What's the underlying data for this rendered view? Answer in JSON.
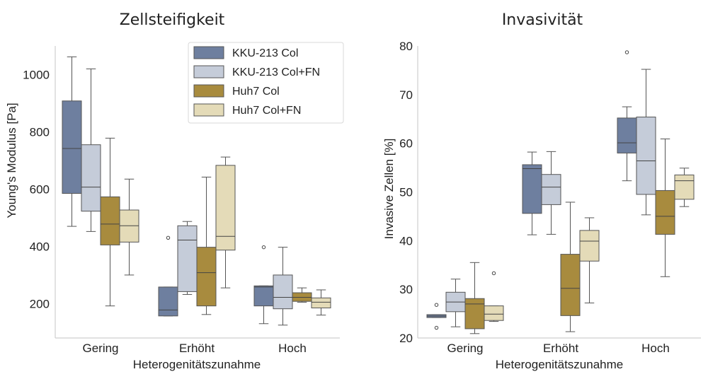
{
  "chart_data": [
    {
      "type": "box",
      "title": "Zellsteifigkeit",
      "xlabel": "Heterogenitätszunahme",
      "ylabel": "Young's Modulus [Pa]",
      "ylim": [
        80,
        1100
      ],
      "yticks": [
        200,
        400,
        600,
        800,
        1000
      ],
      "categories": [
        "Gering",
        "Erhöht",
        "Hoch"
      ],
      "legend_position": "top-right",
      "series": [
        {
          "name": "KKU-213 Col",
          "color": "#6e7f9f",
          "boxes": [
            {
              "whislo": 470,
              "q1": 585,
              "med": 742,
              "q3": 908,
              "whishi": 1062,
              "fliers": []
            },
            {
              "whislo": 157,
              "q1": 157,
              "med": 178,
              "q3": 258,
              "whishi": 258,
              "fliers": [
                430
              ]
            },
            {
              "whislo": 130,
              "q1": 192,
              "med": 258,
              "q3": 262,
              "whishi": 262,
              "fliers": [
                397
              ]
            }
          ]
        },
        {
          "name": "KKU-213 Col+FN",
          "color": "#c5ccd9",
          "boxes": [
            {
              "whislo": 452,
              "q1": 523,
              "med": 607,
              "q3": 755,
              "whishi": 1020,
              "fliers": []
            },
            {
              "whislo": 232,
              "q1": 242,
              "med": 422,
              "q3": 472,
              "whishi": 487,
              "fliers": []
            },
            {
              "whislo": 125,
              "q1": 182,
              "med": 222,
              "q3": 300,
              "whishi": 397,
              "fliers": []
            }
          ]
        },
        {
          "name": "Huh7 Col",
          "color": "#a88b3e",
          "boxes": [
            {
              "whislo": 192,
              "q1": 405,
              "med": 478,
              "q3": 573,
              "whishi": 778,
              "fliers": []
            },
            {
              "whislo": 162,
              "q1": 192,
              "med": 308,
              "q3": 397,
              "whishi": 642,
              "fliers": []
            },
            {
              "whislo": 205,
              "q1": 208,
              "med": 222,
              "q3": 238,
              "whishi": 255,
              "fliers": []
            }
          ]
        },
        {
          "name": "Huh7 Col+FN",
          "color": "#e4dbb8",
          "boxes": [
            {
              "whislo": 300,
              "q1": 415,
              "med": 472,
              "q3": 527,
              "whishi": 635,
              "fliers": []
            },
            {
              "whislo": 255,
              "q1": 387,
              "med": 435,
              "q3": 683,
              "whishi": 712,
              "fliers": []
            },
            {
              "whislo": 160,
              "q1": 185,
              "med": 205,
              "q3": 220,
              "whishi": 248,
              "fliers": []
            }
          ]
        }
      ]
    },
    {
      "type": "box",
      "title": "Invasivität",
      "xlabel": "Heterogenitätszunahme",
      "ylabel": "Invasive Zellen [%]",
      "ylim": [
        20,
        80
      ],
      "yticks": [
        20,
        30,
        40,
        50,
        60,
        70,
        80
      ],
      "categories": [
        "Gering",
        "Erhöht",
        "Hoch"
      ],
      "series": [
        {
          "name": "KKU-213 Col",
          "color": "#6e7f9f",
          "boxes": [
            {
              "whislo": 24.2,
              "q1": 24.2,
              "med": 24.5,
              "q3": 24.8,
              "whishi": 24.8,
              "fliers": [
                26.8,
                22.1
              ]
            },
            {
              "whislo": 41.2,
              "q1": 45.6,
              "med": 54.8,
              "q3": 55.6,
              "whishi": 58.2,
              "fliers": []
            },
            {
              "whislo": 52.3,
              "q1": 58.0,
              "med": 60.1,
              "q3": 65.2,
              "whishi": 67.5,
              "fliers": [
                78.7
              ]
            }
          ]
        },
        {
          "name": "KKU-213 Col+FN",
          "color": "#c5ccd9",
          "boxes": [
            {
              "whislo": 22.3,
              "q1": 25.4,
              "med": 27.4,
              "q3": 29.4,
              "whishi": 32.1,
              "fliers": []
            },
            {
              "whislo": 41.3,
              "q1": 47.4,
              "med": 51.0,
              "q3": 53.6,
              "whishi": 58.3,
              "fliers": []
            },
            {
              "whislo": 45.3,
              "q1": 49.5,
              "med": 56.4,
              "q3": 65.4,
              "whishi": 75.2,
              "fliers": []
            }
          ]
        },
        {
          "name": "Huh7 Col",
          "color": "#a88b3e",
          "boxes": [
            {
              "whislo": 20.9,
              "q1": 21.9,
              "med": 27.0,
              "q3": 28.1,
              "whishi": 35.5,
              "fliers": []
            },
            {
              "whislo": 21.3,
              "q1": 24.6,
              "med": 30.2,
              "q3": 37.2,
              "whishi": 47.9,
              "fliers": []
            },
            {
              "whislo": 32.6,
              "q1": 41.3,
              "med": 45.0,
              "q3": 50.3,
              "whishi": 60.9,
              "fliers": []
            }
          ]
        },
        {
          "name": "Huh7 Col+FN",
          "color": "#e4dbb8",
          "boxes": [
            {
              "whislo": 23.4,
              "q1": 23.6,
              "med": 24.9,
              "q3": 26.6,
              "whishi": 26.6,
              "fliers": [
                33.3
              ]
            },
            {
              "whislo": 27.2,
              "q1": 35.8,
              "med": 39.9,
              "q3": 42.1,
              "whishi": 44.7,
              "fliers": []
            },
            {
              "whislo": 47.0,
              "q1": 48.5,
              "med": 52.3,
              "q3": 53.5,
              "whishi": 54.9,
              "fliers": []
            }
          ]
        }
      ]
    }
  ]
}
